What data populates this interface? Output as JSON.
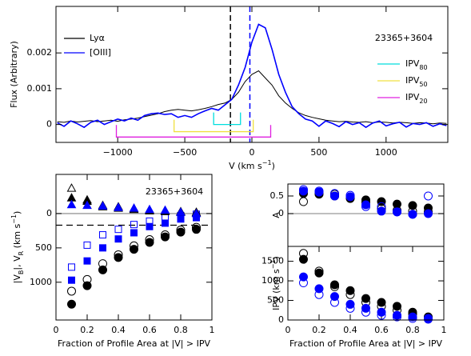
{
  "chart_data": [
    {
      "type": "line",
      "ylabel": [
        {
          "text": "Flux (Arbitrary)"
        }
      ],
      "xlabel": [
        {
          "text": "V (km s"
        },
        {
          "text": "−1",
          "pos": "sup"
        },
        {
          "text": ")"
        }
      ],
      "label": "23365+3604",
      "legend": "upper left",
      "xlim": [
        -1460,
        1460
      ],
      "ylim": [
        -0.0005,
        0.0033
      ],
      "xticks": [
        {
          "value": -1000,
          "label": "−1000"
        },
        {
          "value": -500,
          "label": "−500"
        },
        0,
        500,
        1000
      ],
      "yticks": [
        0,
        0.001,
        0.002
      ],
      "x": [
        -1450,
        -1400,
        -1350,
        -1300,
        -1250,
        -1200,
        -1150,
        -1100,
        -1050,
        -1000,
        -950,
        -900,
        -850,
        -800,
        -750,
        -700,
        -650,
        -600,
        -550,
        -500,
        -450,
        -400,
        -350,
        -300,
        -250,
        -200,
        -150,
        -100,
        -50,
        0,
        50,
        100,
        150,
        200,
        250,
        300,
        350,
        400,
        450,
        500,
        550,
        600,
        650,
        700,
        750,
        800,
        850,
        900,
        950,
        1000,
        1050,
        1100,
        1150,
        1200,
        1250,
        1300,
        1350,
        1400,
        1450
      ],
      "series": [
        {
          "name": "Lyα",
          "color": "#000000",
          "values": [
            8e-05,
            6e-05,
            0.0001,
            7e-05,
            9e-05,
            0.00011,
            8e-05,
            0.0001,
            0.00012,
            9e-05,
            0.00013,
            0.00015,
            0.00018,
            0.00022,
            0.00026,
            0.0003,
            0.00036,
            0.0004,
            0.00042,
            0.0004,
            0.00038,
            0.00041,
            0.00045,
            0.0005,
            0.00056,
            0.0006,
            0.0007,
            0.0009,
            0.0012,
            0.0014,
            0.0015,
            0.0013,
            0.0011,
            0.0008,
            0.0006,
            0.00045,
            0.00033,
            0.00025,
            0.0002,
            0.00016,
            0.00012,
            0.0001,
            8e-05,
            9e-05,
            7e-05,
            6e-05,
            8e-05,
            5e-05,
            7e-05,
            6e-05,
            4e-05,
            6e-05,
            5e-05,
            3e-05,
            5e-05,
            4e-05,
            2e-05,
            4e-05,
            3e-05
          ]
        },
        {
          "name": "[OIII]",
          "color": "#0000ff",
          "values": [
            5e-05,
            -5e-05,
            0.0001,
            2e-05,
            -8e-05,
            6e-05,
            0.00012,
            0,
            8e-05,
            0.00015,
            0.0001,
            0.00018,
            0.00012,
            0.00025,
            0.0003,
            0.00032,
            0.00028,
            0.0003,
            0.0002,
            0.00025,
            0.0002,
            0.0003,
            0.00038,
            0.00045,
            0.0004,
            0.00055,
            0.0007,
            0.0011,
            0.0016,
            0.0023,
            0.0028,
            0.0027,
            0.0021,
            0.0014,
            0.0009,
            0.0005,
            0.0003,
            0.00015,
            0.0001,
            -5e-05,
            0.0001,
            3e-05,
            -6e-05,
            8e-05,
            0,
            5e-05,
            -8e-05,
            4e-05,
            0.0001,
            -4e-05,
            2e-05,
            6e-05,
            -7e-05,
            3e-05,
            0,
            5e-05,
            -5e-05,
            2e-05,
            -3e-05
          ]
        }
      ],
      "vlines": [
        {
          "value": -160,
          "color": "#000000",
          "dash": true
        },
        {
          "value": -15,
          "color": "#0000ff",
          "dash": true
        }
      ],
      "brackets": [
        {
          "name": "IPV",
          "sub": "80",
          "color": "#00dede",
          "range": [
            -285,
            -85
          ],
          "level": 0
        },
        {
          "name": "IPV",
          "sub": "50",
          "color": "#f0e040",
          "range": [
            -580,
            10
          ],
          "level": -0.0002
        },
        {
          "name": "IPV",
          "sub": "20",
          "color": "#e020e0",
          "range": [
            -1010,
            140
          ],
          "level": -0.00035
        }
      ]
    },
    {
      "type": "scatter",
      "ylabel": [
        {
          "text": "|V"
        },
        {
          "text": "B",
          "pos": "sub"
        },
        {
          "text": "|, V"
        },
        {
          "text": "R",
          "pos": "sub"
        },
        {
          "text": " (km s"
        },
        {
          "text": "−1",
          "pos": "sup"
        },
        {
          "text": ")"
        }
      ],
      "xlabel": [
        {
          "text": "Fraction of Profile Area at |V| > IPV"
        }
      ],
      "label": "23365+3604",
      "xlim": [
        0,
        1
      ],
      "ylim": [
        1550,
        -570
      ],
      "xticks": [
        0,
        0.2,
        0.4,
        0.6,
        0.8,
        1
      ],
      "yticks": [
        0,
        500,
        1000
      ],
      "hlines": [
        {
          "value": 0,
          "color": "#999999",
          "dash": false
        },
        {
          "value": 170,
          "color": "#000000",
          "dash": true
        }
      ],
      "x": [
        0.1,
        0.2,
        0.3,
        0.4,
        0.5,
        0.6,
        0.7,
        0.8,
        0.9
      ],
      "series": [
        {
          "marker": "circle",
          "filled": true,
          "color": "#000000",
          "values": [
            1320,
            1050,
            820,
            640,
            520,
            420,
            340,
            270,
            230
          ]
        },
        {
          "marker": "circle",
          "filled": false,
          "color": "#000000",
          "values": [
            1130,
            960,
            730,
            600,
            470,
            380,
            310,
            240,
            200
          ]
        },
        {
          "marker": "square",
          "filled": true,
          "color": "#0000ff",
          "values": [
            970,
            690,
            500,
            370,
            280,
            190,
            140,
            80,
            60
          ]
        },
        {
          "marker": "square",
          "filled": false,
          "color": "#0000ff",
          "values": [
            780,
            460,
            310,
            230,
            160,
            110,
            60,
            30,
            10
          ]
        },
        {
          "marker": "triangle",
          "filled": false,
          "color": "#000000",
          "values": [
            -370,
            -200,
            -100,
            -80,
            -60,
            -40,
            -30,
            -20,
            -10
          ]
        },
        {
          "marker": "triangle",
          "filled": true,
          "color": "#000000",
          "values": [
            -230,
            -180,
            -120,
            -100,
            -70,
            -50,
            -40,
            -30,
            -20
          ]
        },
        {
          "marker": "triangle",
          "filled": true,
          "color": "#0000ff",
          "values": [
            -130,
            -120,
            -110,
            -90,
            -80,
            -60,
            -50,
            -20,
            0
          ]
        }
      ]
    },
    {
      "type": "scatter",
      "ylabel": [
        {
          "text": "A"
        }
      ],
      "xlim": [
        0,
        1
      ],
      "ylim": [
        -0.93,
        0.84
      ],
      "yticks": [
        0,
        0.5
      ],
      "hlines": [
        {
          "value": 0,
          "color": "#999999",
          "dash": false
        }
      ],
      "x": [
        0.1,
        0.2,
        0.3,
        0.4,
        0.5,
        0.6,
        0.7,
        0.8,
        0.9
      ],
      "series": [
        {
          "marker": "circle",
          "filled": false,
          "color": "#000000",
          "values": [
            0.34,
            0.59,
            0.55,
            0.43,
            0.32,
            0.14,
            0.09,
            0.07,
            0.05
          ]
        },
        {
          "marker": "circle",
          "filled": true,
          "color": "#000000",
          "values": [
            0.57,
            0.55,
            0.5,
            0.45,
            0.39,
            0.34,
            0.27,
            0.23,
            0.16
          ]
        },
        {
          "marker": "circle",
          "filled": true,
          "color": "#0000ff",
          "values": [
            0.64,
            0.61,
            0.5,
            0.48,
            0.25,
            0.07,
            0.05,
            -0.02,
            0
          ]
        },
        {
          "marker": "circle",
          "filled": false,
          "color": "#0000ff",
          "values": [
            0.68,
            0.64,
            0.57,
            0.52,
            0.2,
            0.2,
            0.05,
            -0.02,
            0.5
          ]
        }
      ]
    },
    {
      "type": "scatter",
      "ylabel": [
        {
          "text": "IPV (km s"
        },
        {
          "text": "−1",
          "pos": "sup"
        },
        {
          "text": ")"
        }
      ],
      "xlabel": [
        {
          "text": "Fraction of Profile Area at |V| > IPV"
        }
      ],
      "xlim": [
        0,
        1
      ],
      "ylim": [
        0,
        1880
      ],
      "xticks": [
        0,
        0.2,
        0.4,
        0.6,
        0.8,
        1
      ],
      "yticks": [
        0,
        500,
        1000,
        1500
      ],
      "x": [
        0.1,
        0.2,
        0.3,
        0.4,
        0.5,
        0.6,
        0.7,
        0.8,
        0.9
      ],
      "series": [
        {
          "marker": "circle",
          "filled": false,
          "color": "#000000",
          "values": [
            1700,
            1250,
            850,
            650,
            450,
            350,
            250,
            150,
            60
          ]
        },
        {
          "marker": "circle",
          "filled": true,
          "color": "#000000",
          "values": [
            1550,
            1200,
            900,
            750,
            550,
            450,
            350,
            200,
            80
          ]
        },
        {
          "marker": "circle",
          "filled": true,
          "color": "#0000ff",
          "values": [
            1100,
            800,
            600,
            400,
            300,
            200,
            120,
            80,
            40
          ]
        },
        {
          "marker": "circle",
          "filled": false,
          "color": "#0000ff",
          "values": [
            950,
            650,
            450,
            300,
            200,
            120,
            80,
            40,
            20
          ]
        }
      ]
    }
  ]
}
